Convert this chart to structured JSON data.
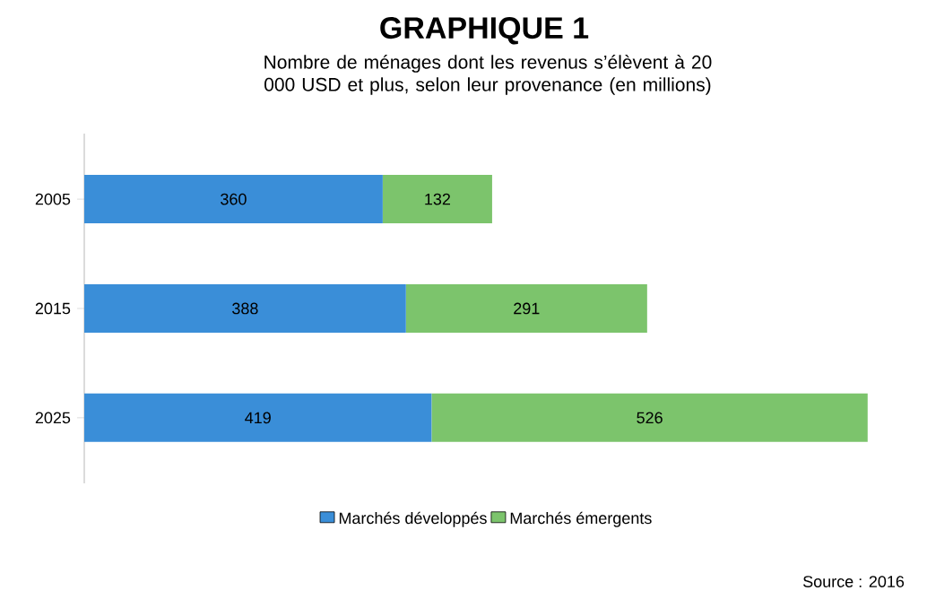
{
  "chart_data": {
    "type": "bar",
    "orientation": "horizontal",
    "stacked": true,
    "data_labels": true,
    "legend": "bottom",
    "title": "GRAPHIQUE 1",
    "subtitle": "Nombre de ménages dont les revenus s’élèvent à 20 000 USD et plus, selon leur provenance (en millions)",
    "categories": [
      "2005",
      "2015",
      "2025"
    ],
    "series": [
      {
        "name": "Marchés développés",
        "color": "#3a8ed8",
        "values": [
          360,
          388,
          419
        ]
      },
      {
        "name": "Marchés émergents",
        "color": "#7cc46c",
        "values": [
          132,
          291,
          526
        ]
      }
    ],
    "annotations": [
      "Source : 2016"
    ]
  }
}
